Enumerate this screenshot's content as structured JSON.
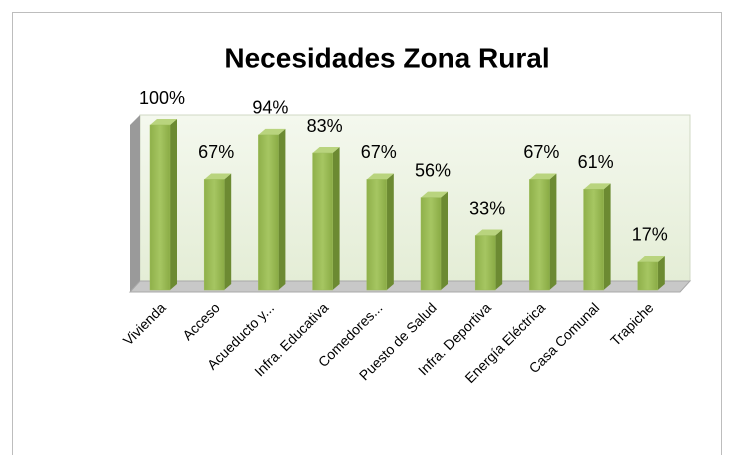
{
  "chart_data": {
    "type": "bar3d",
    "title": "Necesidades Zona Rural",
    "categories": [
      "Vivienda",
      "Acceso",
      "Acueducto y...",
      "Infra. Educativa",
      "Comedores...",
      "Puesto de Salud",
      "Infra. Deportiva",
      "Energía Eléctrica",
      "Casa Comunal",
      "Trapiche"
    ],
    "values": [
      100,
      67,
      94,
      83,
      67,
      56,
      33,
      67,
      61,
      17
    ],
    "value_labels": [
      "100%",
      "67%",
      "94%",
      "83%",
      "67%",
      "56%",
      "33%",
      "67%",
      "61%",
      "17%"
    ],
    "color": "#9bbb59",
    "ylim": [
      0,
      100
    ]
  }
}
